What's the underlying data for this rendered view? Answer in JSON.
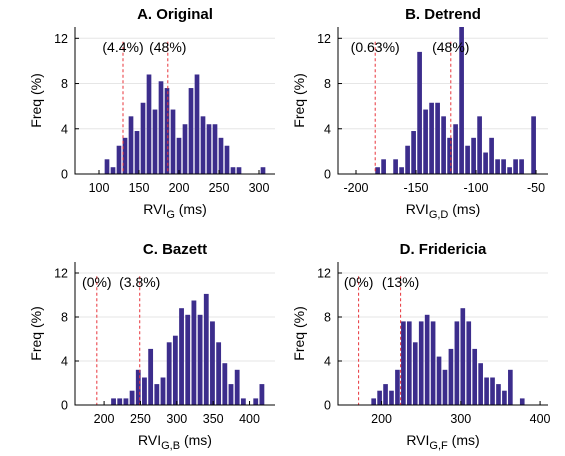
{
  "figure": {
    "bar_color": "#3c2d8c",
    "reference_line_color": "#e8333a"
  },
  "chart_data": [
    {
      "type": "bar",
      "title": "A. Original",
      "xlabel_main": "RVI",
      "xlabel_sub": "G",
      "xlabel_unit": " (ms)",
      "ylabel": "Freq (%)",
      "xlim": [
        70,
        320
      ],
      "ylim": [
        0,
        13
      ],
      "xticks": [
        100,
        150,
        200,
        250,
        300
      ],
      "yticks": [
        0,
        4,
        8,
        12
      ],
      "bin_width": 7.5,
      "bar_x": [
        110,
        117.5,
        125,
        132.5,
        140,
        147.5,
        155,
        162.5,
        170,
        177.5,
        185,
        192.5,
        200,
        207.5,
        215,
        222.5,
        230,
        237.5,
        245,
        252.5,
        260,
        267.5,
        275,
        305
      ],
      "bar_values": [
        1.3,
        0.6,
        2.5,
        3.2,
        5.1,
        3.8,
        6.3,
        8.8,
        5.7,
        8.2,
        7.6,
        5.7,
        3.2,
        4.4,
        7.6,
        8.8,
        5.1,
        4.4,
        4.4,
        3.2,
        2.5,
        0.6,
        0.6,
        0.6
      ],
      "reference_lines": [
        {
          "x": 130,
          "label": "(4.4%)"
        },
        {
          "x": 186,
          "label": "(48%)"
        }
      ]
    },
    {
      "type": "bar",
      "title": "B. Detrend",
      "xlabel_main": "RVI",
      "xlabel_sub": "G,D",
      "xlabel_unit": " (ms)",
      "ylabel": "Freq (%)",
      "xlim": [
        -215,
        -40
      ],
      "ylim": [
        0,
        13
      ],
      "xticks": [
        -200,
        -150,
        -100,
        -50
      ],
      "yticks": [
        0,
        4,
        8,
        12
      ],
      "bin_width": 5,
      "bar_x": [
        -182,
        -177,
        -167,
        -162,
        -157,
        -152,
        -147,
        -142,
        -137,
        -132,
        -127,
        -122,
        -117,
        -112,
        -107,
        -102,
        -97,
        -92,
        -87,
        -82,
        -77,
        -72,
        -67,
        -62,
        -52
      ],
      "bar_values": [
        0.6,
        1.3,
        1.3,
        0.6,
        2.5,
        3.8,
        10.8,
        5.7,
        6.3,
        6.3,
        5.1,
        3.2,
        4.4,
        13,
        2.5,
        3.2,
        5.1,
        1.9,
        3.2,
        1.3,
        1.3,
        0.6,
        1.3,
        1.3,
        5.1
      ],
      "reference_lines": [
        {
          "x": -184,
          "label": "(0.63%)"
        },
        {
          "x": -121,
          "label": "(48%)"
        }
      ]
    },
    {
      "type": "bar",
      "title": "C. Bazett",
      "xlabel_main": "RVI",
      "xlabel_sub": "G,B",
      "xlabel_unit": " (ms)",
      "ylabel": "Freq (%)",
      "xlim": [
        160,
        435
      ],
      "ylim": [
        0,
        13
      ],
      "xticks": [
        200,
        250,
        300,
        350,
        400
      ],
      "yticks": [
        0,
        4,
        8,
        12
      ],
      "bin_width": 8.5,
      "bar_x": [
        213,
        221.5,
        230,
        238.5,
        247,
        255.5,
        264,
        272.5,
        281,
        289.5,
        298,
        306.5,
        315,
        323.5,
        332,
        340.5,
        349,
        357.5,
        366,
        374.5,
        383,
        391.5,
        408.5,
        417
      ],
      "bar_values": [
        0.6,
        0.6,
        0.6,
        1.3,
        3.2,
        2.5,
        5.1,
        1.9,
        2.5,
        5.7,
        6.3,
        8.8,
        8.2,
        9.5,
        8.2,
        10.1,
        7.6,
        5.7,
        3.8,
        1.9,
        3.2,
        0.6,
        0.6,
        1.9
      ],
      "reference_lines": [
        {
          "x": 190,
          "label": "(0%)"
        },
        {
          "x": 249,
          "label": "(3.8%)"
        }
      ]
    },
    {
      "type": "bar",
      "title": "D. Fridericia",
      "xlabel_main": "RVI",
      "xlabel_sub": "G,F",
      "xlabel_unit": " (ms)",
      "ylabel": "Freq (%)",
      "xlim": [
        145,
        410
      ],
      "ylim": [
        0,
        13
      ],
      "xticks": [
        200,
        300,
        400
      ],
      "yticks": [
        0,
        4,
        8,
        12
      ],
      "bin_width": 7.5,
      "bar_x": [
        190,
        197.5,
        205,
        212.5,
        220,
        227.5,
        235,
        242.5,
        250,
        257.5,
        265,
        272.5,
        280,
        287.5,
        295,
        302.5,
        310,
        317.5,
        325,
        332.5,
        340,
        347.5,
        355,
        362.5,
        377.5
      ],
      "bar_values": [
        0.6,
        1.3,
        1.9,
        1.3,
        3.2,
        7.6,
        7.6,
        5.7,
        7.6,
        8.2,
        7.6,
        4.4,
        3.2,
        5.1,
        7.6,
        8.8,
        7.6,
        5.1,
        3.8,
        2.5,
        2.5,
        1.9,
        1.3,
        3.2,
        0.6
      ],
      "reference_lines": [
        {
          "x": 171,
          "label": "(0%)"
        },
        {
          "x": 224,
          "label": "(13%)"
        }
      ]
    }
  ]
}
